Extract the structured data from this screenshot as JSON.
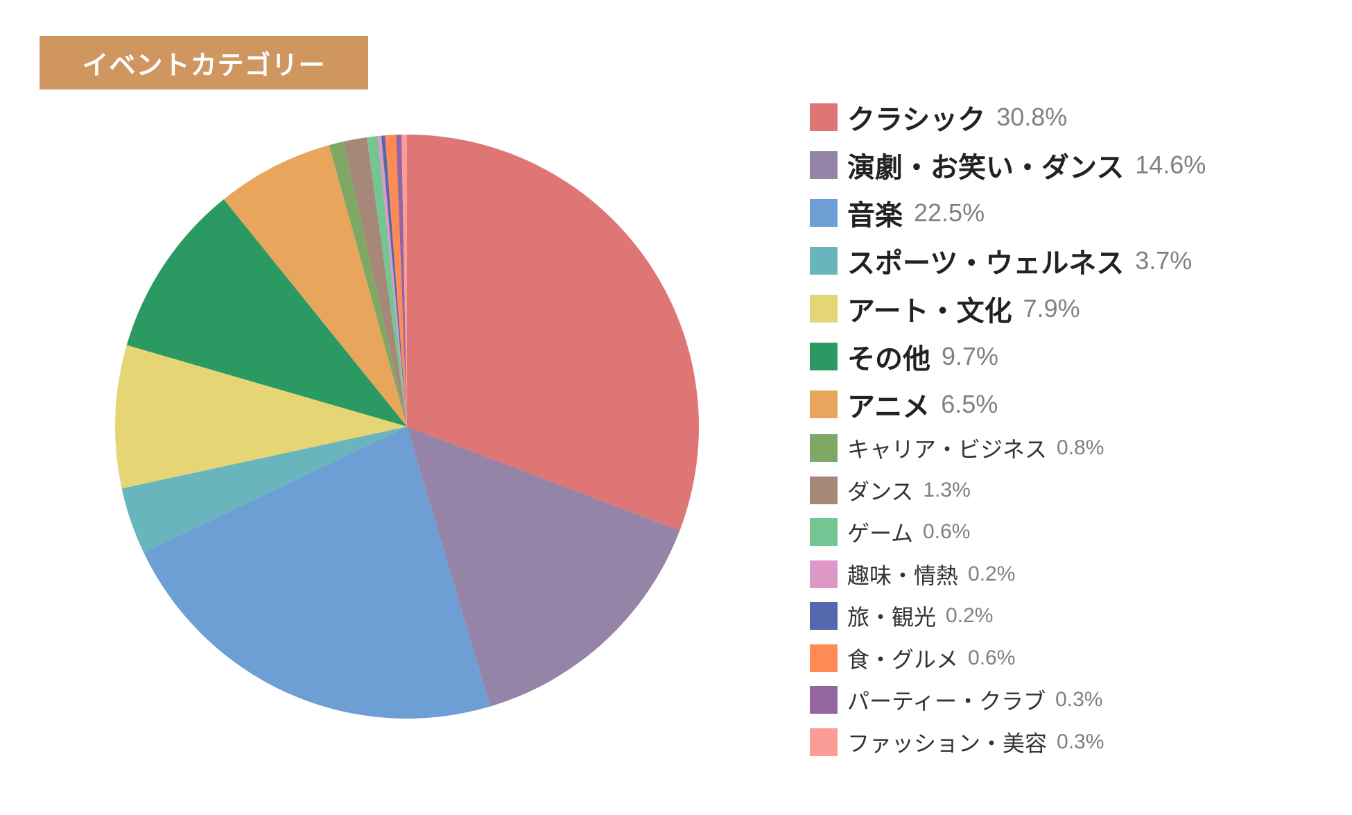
{
  "title": "イベントカテゴリー",
  "colors": {
    "title_background": "#cf9660",
    "title_text": "#ffffff"
  },
  "chart_data": {
    "type": "pie",
    "title": "イベントカテゴリー",
    "legend_position": "right",
    "start_angle": "top, clockwise",
    "slices": [
      {
        "label": "クラシック",
        "value": 30.8,
        "value_label": "30.8%",
        "color": "#de7676",
        "emphasis": true
      },
      {
        "label": "演劇・お笑い・ダンス",
        "value": 14.6,
        "value_label": "14.6%",
        "color": "#9683a8",
        "emphasis": true
      },
      {
        "label": "音楽",
        "value": 22.5,
        "value_label": "22.5%",
        "color": "#6e9fd4",
        "emphasis": true
      },
      {
        "label": "スポーツ・ウェルネス",
        "value": 3.7,
        "value_label": "3.7%",
        "color": "#68b5bd",
        "emphasis": true
      },
      {
        "label": "アート・文化",
        "value": 7.9,
        "value_label": "7.9%",
        "color": "#e5d574",
        "emphasis": true
      },
      {
        "label": "その他",
        "value": 9.7,
        "value_label": "9.7%",
        "color": "#2b9a62",
        "emphasis": true
      },
      {
        "label": "アニメ",
        "value": 6.5,
        "value_label": "6.5%",
        "color": "#e8a65c",
        "emphasis": true
      },
      {
        "label": "キャリア・ビジネス",
        "value": 0.8,
        "value_label": "0.8%",
        "color": "#7ea863",
        "emphasis": false
      },
      {
        "label": "ダンス",
        "value": 1.3,
        "value_label": "1.3%",
        "color": "#a68878",
        "emphasis": false
      },
      {
        "label": "ゲーム",
        "value": 0.6,
        "value_label": "0.6%",
        "color": "#75c494",
        "emphasis": false
      },
      {
        "label": "趣味・情熱",
        "value": 0.2,
        "value_label": "0.2%",
        "color": "#de98c8",
        "emphasis": false
      },
      {
        "label": "旅・観光",
        "value": 0.2,
        "value_label": "0.2%",
        "color": "#5468ad",
        "emphasis": false
      },
      {
        "label": "食・グルメ",
        "value": 0.6,
        "value_label": "0.6%",
        "color": "#fe8a56",
        "emphasis": false
      },
      {
        "label": "パーティー・クラブ",
        "value": 0.3,
        "value_label": "0.3%",
        "color": "#9366a1",
        "emphasis": false
      },
      {
        "label": "ファッション・美容",
        "value": 0.3,
        "value_label": "0.3%",
        "color": "#fc9c96",
        "emphasis": false
      }
    ]
  }
}
